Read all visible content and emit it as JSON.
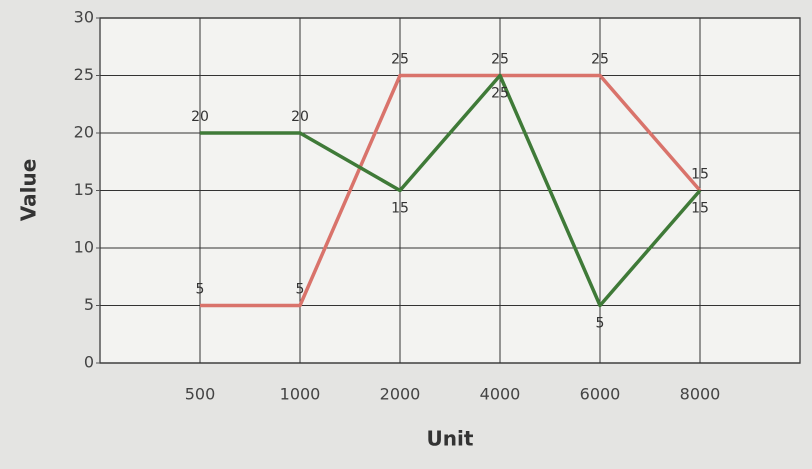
{
  "chart_data": {
    "type": "line",
    "x_label": "Unit",
    "y_label": "Value",
    "categories": [
      "500",
      "1000",
      "2000",
      "4000",
      "6000",
      "8000"
    ],
    "series": [
      {
        "color": "#d9736b",
        "values": [
          5,
          5,
          25,
          25,
          25,
          15
        ]
      },
      {
        "color": "#3f7a38",
        "values": [
          20,
          20,
          15,
          25,
          5,
          15
        ]
      }
    ],
    "ylim": [
      0,
      30
    ],
    "yticks": [
      0,
      5,
      10,
      15,
      20,
      25,
      30
    ],
    "grid": true,
    "data_labels": true
  }
}
